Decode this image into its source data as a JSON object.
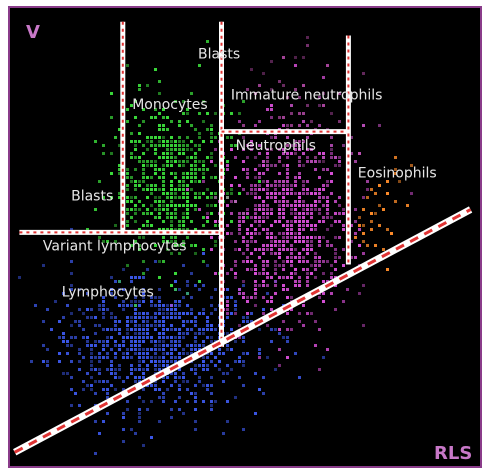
{
  "chart_data": {
    "type": "scatter",
    "title": "",
    "xlabel": "RLS",
    "ylabel": "V",
    "xlim": [
      0,
      100
    ],
    "ylim": [
      0,
      100
    ],
    "grid": false,
    "legend": "none",
    "series": [
      {
        "name": "Lymphocytes",
        "center": [
          30,
          27
        ],
        "spread": [
          11,
          7
        ],
        "count": 900,
        "color": "#3b57e8"
      },
      {
        "name": "Monocytes",
        "center": [
          34,
          62
        ],
        "spread": [
          6,
          9
        ],
        "count": 650,
        "color": "#3bdc3b"
      },
      {
        "name": "Neutrophils",
        "center": [
          58,
          52
        ],
        "spread": [
          7,
          10
        ],
        "count": 800,
        "color": "#d64fd6"
      },
      {
        "name": "Eosinophils",
        "center": [
          78,
          56
        ],
        "spread": [
          3,
          5
        ],
        "count": 40,
        "color": "#ff8c2a"
      },
      {
        "name": "Blasts",
        "center": [
          60,
          80
        ],
        "spread": [
          5,
          8
        ],
        "count": 50,
        "color": "#a6449a"
      },
      {
        "name": "Immature neutrophils",
        "center": [
          64,
          70
        ],
        "spread": [
          6,
          4
        ],
        "count": 60,
        "color": "#b64cb6"
      }
    ],
    "annotations": [
      {
        "text": "Blasts",
        "x": 40,
        "y": 89
      },
      {
        "text": "Monocytes",
        "x": 26,
        "y": 78
      },
      {
        "text": "Immature neutrophils",
        "x": 47,
        "y": 80
      },
      {
        "text": "Neutrophils",
        "x": 48,
        "y": 69
      },
      {
        "text": "Eosinophils",
        "x": 74,
        "y": 63
      },
      {
        "text": "Blasts",
        "x": 13,
        "y": 58
      },
      {
        "text": "Variant lymphocytes",
        "x": 7,
        "y": 47
      },
      {
        "text": "Lymphocytes",
        "x": 11,
        "y": 37
      }
    ],
    "gate_lines": [
      {
        "from": [
          24,
          97
        ],
        "to": [
          24,
          51
        ]
      },
      {
        "from": [
          2,
          51
        ],
        "to": [
          45,
          51
        ]
      },
      {
        "from": [
          45,
          97
        ],
        "to": [
          45,
          26
        ]
      },
      {
        "from": [
          45,
          73
        ],
        "to": [
          72,
          73
        ]
      },
      {
        "from": [
          72,
          94
        ],
        "to": [
          72,
          44
        ]
      },
      {
        "from": [
          1,
          3
        ],
        "to": [
          98,
          56
        ]
      }
    ],
    "gate_color": "#ffffff",
    "gate_dash_color": "#e03434"
  }
}
